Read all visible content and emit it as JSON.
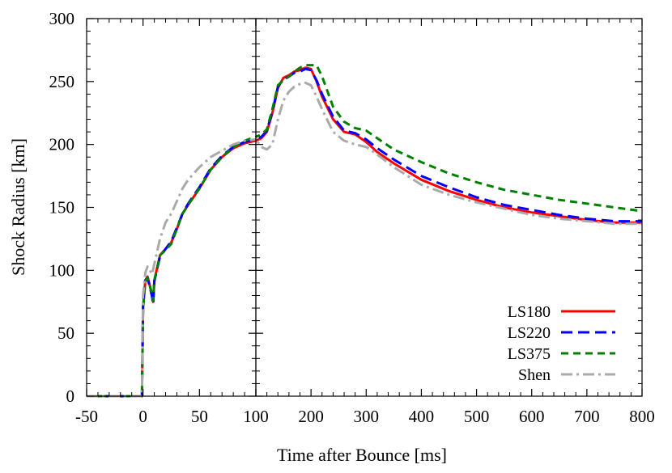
{
  "chart_data": {
    "type": "line",
    "title": "",
    "xlabel": "Time after Bounce [ms]",
    "ylabel": "Shock Radius [km]",
    "ylim": [
      0,
      300
    ],
    "panels": [
      {
        "xlim": [
          -50,
          100
        ],
        "xticks": [
          -50,
          0,
          50,
          100
        ]
      },
      {
        "xlim": [
          100,
          800
        ],
        "xticks": [
          200,
          300,
          400,
          500,
          600,
          700,
          800
        ]
      }
    ],
    "yticks": [
      0,
      50,
      100,
      150,
      200,
      250,
      300
    ],
    "legend_position": "bottom-right",
    "grid": false,
    "series": [
      {
        "name": "LS180",
        "color": "#ff0000",
        "dash": "solid",
        "points": [
          [
            -50,
            0
          ],
          [
            -1,
            0
          ],
          [
            0,
            70
          ],
          [
            2,
            92
          ],
          [
            4,
            95
          ],
          [
            6,
            88
          ],
          [
            8,
            80
          ],
          [
            9,
            75
          ],
          [
            10,
            92
          ],
          [
            15,
            112
          ],
          [
            20,
            117
          ],
          [
            25,
            122
          ],
          [
            30,
            133
          ],
          [
            35,
            145
          ],
          [
            40,
            152
          ],
          [
            50,
            165
          ],
          [
            60,
            180
          ],
          [
            70,
            190
          ],
          [
            80,
            197
          ],
          [
            90,
            201
          ],
          [
            100,
            203
          ],
          [
            110,
            205
          ],
          [
            120,
            210
          ],
          [
            130,
            225
          ],
          [
            140,
            245
          ],
          [
            150,
            253
          ],
          [
            160,
            255
          ],
          [
            170,
            258
          ],
          [
            180,
            259
          ],
          [
            190,
            261
          ],
          [
            200,
            260
          ],
          [
            210,
            250
          ],
          [
            220,
            238
          ],
          [
            240,
            220
          ],
          [
            260,
            210
          ],
          [
            280,
            208
          ],
          [
            300,
            202
          ],
          [
            320,
            194
          ],
          [
            350,
            185
          ],
          [
            400,
            172
          ],
          [
            450,
            163
          ],
          [
            500,
            156
          ],
          [
            550,
            150
          ],
          [
            600,
            146
          ],
          [
            650,
            143
          ],
          [
            700,
            140
          ],
          [
            750,
            138
          ],
          [
            800,
            138
          ]
        ]
      },
      {
        "name": "LS220",
        "color": "#0000ff",
        "dash": "14,7",
        "points": [
          [
            -50,
            0
          ],
          [
            -1,
            0
          ],
          [
            0,
            72
          ],
          [
            2,
            92
          ],
          [
            4,
            94
          ],
          [
            6,
            87
          ],
          [
            8,
            79
          ],
          [
            9,
            73
          ],
          [
            10,
            91
          ],
          [
            15,
            111
          ],
          [
            20,
            117
          ],
          [
            25,
            123
          ],
          [
            30,
            134
          ],
          [
            35,
            145
          ],
          [
            40,
            153
          ],
          [
            50,
            166
          ],
          [
            60,
            181
          ],
          [
            70,
            191
          ],
          [
            80,
            198
          ],
          [
            90,
            202
          ],
          [
            100,
            204
          ],
          [
            110,
            206
          ],
          [
            120,
            211
          ],
          [
            130,
            226
          ],
          [
            140,
            246
          ],
          [
            150,
            252
          ],
          [
            160,
            254
          ],
          [
            170,
            257
          ],
          [
            180,
            258
          ],
          [
            190,
            260
          ],
          [
            200,
            259
          ],
          [
            210,
            251
          ],
          [
            220,
            240
          ],
          [
            240,
            222
          ],
          [
            260,
            211
          ],
          [
            280,
            209
          ],
          [
            300,
            204
          ],
          [
            320,
            197
          ],
          [
            350,
            188
          ],
          [
            400,
            175
          ],
          [
            450,
            166
          ],
          [
            500,
            158
          ],
          [
            550,
            152
          ],
          [
            600,
            148
          ],
          [
            650,
            144
          ],
          [
            700,
            141
          ],
          [
            750,
            139
          ],
          [
            800,
            139
          ]
        ]
      },
      {
        "name": "LS375",
        "color": "#008000",
        "dash": "9,6",
        "points": [
          [
            -50,
            0
          ],
          [
            -1,
            0
          ],
          [
            0,
            70
          ],
          [
            2,
            91
          ],
          [
            4,
            94
          ],
          [
            6,
            88
          ],
          [
            8,
            81
          ],
          [
            9,
            76
          ],
          [
            10,
            92
          ],
          [
            15,
            112
          ],
          [
            20,
            116
          ],
          [
            25,
            121
          ],
          [
            30,
            133
          ],
          [
            35,
            145
          ],
          [
            40,
            152
          ],
          [
            50,
            165
          ],
          [
            60,
            180
          ],
          [
            70,
            190
          ],
          [
            80,
            198
          ],
          [
            90,
            203
          ],
          [
            100,
            206
          ],
          [
            110,
            208
          ],
          [
            120,
            212
          ],
          [
            130,
            228
          ],
          [
            140,
            247
          ],
          [
            150,
            251
          ],
          [
            160,
            254
          ],
          [
            170,
            258
          ],
          [
            180,
            261
          ],
          [
            190,
            263
          ],
          [
            200,
            263
          ],
          [
            210,
            263
          ],
          [
            220,
            254
          ],
          [
            240,
            230
          ],
          [
            260,
            218
          ],
          [
            280,
            213
          ],
          [
            300,
            211
          ],
          [
            320,
            205
          ],
          [
            350,
            196
          ],
          [
            400,
            186
          ],
          [
            450,
            177
          ],
          [
            500,
            170
          ],
          [
            550,
            164
          ],
          [
            600,
            160
          ],
          [
            650,
            156
          ],
          [
            700,
            153
          ],
          [
            750,
            150
          ],
          [
            800,
            147
          ]
        ]
      },
      {
        "name": "Shen",
        "color": "#aaaaaa",
        "dash": "14,5,3,5",
        "points": [
          [
            -50,
            0
          ],
          [
            -1,
            0
          ],
          [
            0,
            80
          ],
          [
            2,
            98
          ],
          [
            4,
            103
          ],
          [
            6,
            100
          ],
          [
            8,
            97
          ],
          [
            10,
            105
          ],
          [
            15,
            125
          ],
          [
            20,
            138
          ],
          [
            25,
            145
          ],
          [
            30,
            155
          ],
          [
            35,
            165
          ],
          [
            40,
            172
          ],
          [
            50,
            182
          ],
          [
            60,
            190
          ],
          [
            70,
            195
          ],
          [
            80,
            200
          ],
          [
            90,
            203
          ],
          [
            100,
            204
          ],
          [
            110,
            198
          ],
          [
            120,
            196
          ],
          [
            130,
            200
          ],
          [
            140,
            220
          ],
          [
            150,
            235
          ],
          [
            160,
            242
          ],
          [
            170,
            246
          ],
          [
            180,
            248
          ],
          [
            190,
            249
          ],
          [
            200,
            247
          ],
          [
            210,
            238
          ],
          [
            220,
            228
          ],
          [
            240,
            210
          ],
          [
            260,
            203
          ],
          [
            280,
            200
          ],
          [
            300,
            198
          ],
          [
            320,
            192
          ],
          [
            350,
            182
          ],
          [
            400,
            168
          ],
          [
            450,
            160
          ],
          [
            500,
            154
          ],
          [
            550,
            149
          ],
          [
            600,
            144
          ],
          [
            650,
            141
          ],
          [
            700,
            139
          ],
          [
            750,
            137
          ],
          [
            800,
            137
          ]
        ]
      }
    ]
  }
}
